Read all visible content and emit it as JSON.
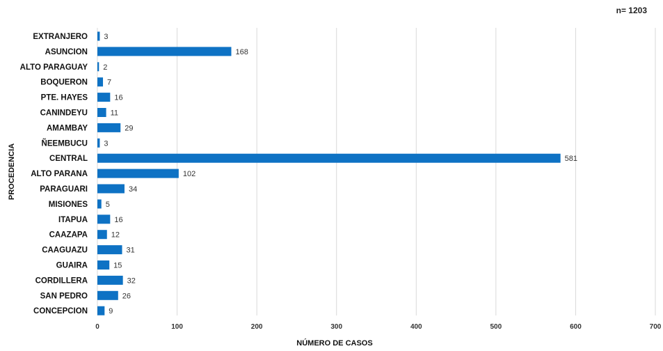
{
  "note": "n= 1203",
  "chart_data": {
    "type": "bar",
    "orientation": "horizontal",
    "title": "",
    "xlabel": "NÚMERO DE CASOS",
    "ylabel": "PROCEDENCIA",
    "xlim": [
      0,
      700
    ],
    "xticks": [
      0,
      100,
      200,
      300,
      400,
      500,
      600,
      700
    ],
    "grid": true,
    "categories": [
      "EXTRANJERO",
      "ASUNCION",
      "ALTO PARAGUAY",
      "BOQUERON",
      "PTE. HAYES",
      "CANINDEYU",
      "AMAMBAY",
      "ÑEEMBUCU",
      "CENTRAL",
      "ALTO PARANA",
      "PARAGUARI",
      "MISIONES",
      "ITAPUA",
      "CAAZAPA",
      "CAAGUAZU",
      "GUAIRA",
      "CORDILLERA",
      "SAN PEDRO",
      "CONCEPCION"
    ],
    "values": [
      3,
      168,
      2,
      7,
      16,
      11,
      29,
      3,
      581,
      102,
      34,
      5,
      16,
      12,
      31,
      15,
      32,
      26,
      9
    ],
    "colors": {
      "bar": "#0E72C4",
      "grid": "#D9D9D9"
    }
  }
}
